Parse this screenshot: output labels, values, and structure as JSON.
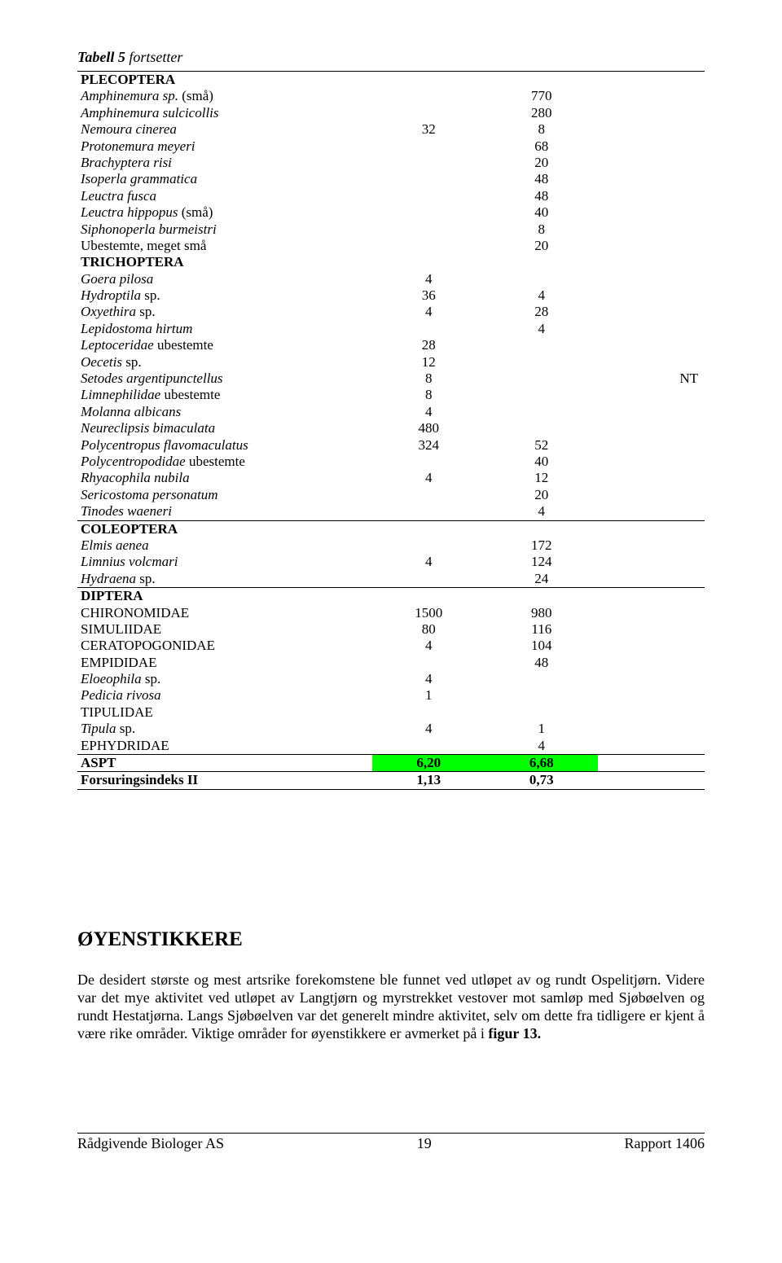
{
  "table_caption_bold": "Tabell 5",
  "table_caption_italic": " fortsetter",
  "section_title": "ØYENSTIKKERE",
  "body_paragraph": "De desidert største og mest artsrike forekomstene ble funnet ved utløpet av og rundt Ospelitjørn. Videre var det mye aktivitet ved utløpet av Langtjørn og myrstrekket vestover mot samløp med Sjøbøelven og rundt Hestatjørna. Langs Sjøbøelven var det generelt mindre aktivitet, selv om dette fra tidligere er kjent å være rike områder. Viktige områder for øyenstikkere er avmerket på i ",
  "body_paragraph_boldtail": "figur 13.",
  "footer_left": "Rådgivende Biologer AS",
  "footer_center": "19",
  "footer_right": "Rapport 1406",
  "highlight_color": "#00ff00",
  "rows": [
    {
      "c1": "PLECOPTERA",
      "bold": true,
      "ruleTop": true
    },
    {
      "c1": "Amphinemura sp. (små)",
      "c3": "770",
      "italic": true,
      "split_paren": true
    },
    {
      "c1": "Amphinemura sulcicollis",
      "c3": "280",
      "italic": true
    },
    {
      "c1": "Nemoura cinerea",
      "c2": "32",
      "c3": "8",
      "italic": true
    },
    {
      "c1": "Protonemura meyeri",
      "c3": "68",
      "italic": true
    },
    {
      "c1": "Brachyptera risi",
      "c3": "20",
      "italic": true
    },
    {
      "c1": "Isoperla grammatica",
      "c3": "48",
      "italic": true
    },
    {
      "c1": "Leuctra fusca",
      "c3": "48",
      "italic": true
    },
    {
      "c1": "Leuctra hippopus (små)",
      "c3": "40",
      "italic": true,
      "split_paren": true
    },
    {
      "c1": "Siphonoperla burmeistri",
      "c3": "8",
      "italic": true
    },
    {
      "c1": "Ubestemte, meget små",
      "c3": "20"
    },
    {
      "c1": "TRICHOPTERA",
      "bold": true
    },
    {
      "c1": "Goera pilosa",
      "c2": "4",
      "italic": true
    },
    {
      "c1": "Hydroptila sp.",
      "c2": "36",
      "c3": "4",
      "italic": true,
      "split_sp": true
    },
    {
      "c1": "Oxyethira sp.",
      "c2": "4",
      "c3": "28",
      "italic": true,
      "split_sp": true
    },
    {
      "c1": "Lepidostoma hirtum",
      "c3": "4",
      "italic": true
    },
    {
      "c1_italic": "Leptoceridae",
      "c1_plain": " ubestemte",
      "c2": "28",
      "mixed": true
    },
    {
      "c1": "Oecetis sp.",
      "c2": "12",
      "italic": true,
      "split_sp": true
    },
    {
      "c1": "Setodes argentipunctellus",
      "c2": "8",
      "c4": "NT",
      "italic": true
    },
    {
      "c1_italic": "Limnephilidae",
      "c1_plain": " ubestemte",
      "c2": "8",
      "mixed": true
    },
    {
      "c1": "Molanna albicans",
      "c2": "4",
      "italic": true
    },
    {
      "c1": "Neureclipsis bimaculata",
      "c2": "480",
      "italic": true
    },
    {
      "c1": "Polycentropus flavomaculatus",
      "c2": "324",
      "c3": "52",
      "italic": true
    },
    {
      "c1_italic": "Polycentropodidae",
      "c1_plain": "   ubestemte",
      "c3": "40",
      "mixed": true
    },
    {
      "c1": "Rhyacophila nubila",
      "c2": "4",
      "c3": "12",
      "italic": true
    },
    {
      "c1": "Sericostoma personatum",
      "c3": "20",
      "italic": true
    },
    {
      "c1": "Tinodes waeneri",
      "c3": "4",
      "italic": true,
      "ruleBot": true
    },
    {
      "c1": "COLEOPTERA",
      "bold": true
    },
    {
      "c1": "Elmis aenea",
      "c3": "172",
      "italic": true
    },
    {
      "c1": "Limnius volcmari",
      "c2": "4",
      "c3": "124",
      "italic": true
    },
    {
      "c1": "Hydraena sp.",
      "c3": "24",
      "italic": true,
      "split_sp": true,
      "ruleBot": true
    },
    {
      "c1": "DIPTERA",
      "bold": true
    },
    {
      "c1": "CHIRONOMIDAE",
      "c2": "1500",
      "c3": "980"
    },
    {
      "c1": "SIMULIIDAE",
      "c2": "80",
      "c3": "116"
    },
    {
      "c1": "CERATOPOGONIDAE",
      "c2": "4",
      "c3": "104"
    },
    {
      "c1": "EMPIDIDAE",
      "c3": "48"
    },
    {
      "c1": "Eloeophila sp.",
      "c2": "4",
      "italic": true,
      "split_sp": true
    },
    {
      "c1": "Pedicia rivosa",
      "c2": "1",
      "italic": true
    },
    {
      "c1": "TIPULIDAE"
    },
    {
      "c1": "Tipula sp.",
      "c2": "4",
      "c3": "1",
      "italic": true,
      "split_sp": true
    },
    {
      "c1": "EPHYDRIDAE",
      "c3": "4",
      "ruleBot": true
    },
    {
      "c1": "ASPT",
      "c2": "6,20",
      "c3": "6,68",
      "bold": true,
      "highlight": true,
      "ruleBot": true
    },
    {
      "c1": "Forsuringsindeks II",
      "c2": "1,13",
      "c3": "0,73",
      "bold": true,
      "ruleBot": true
    }
  ]
}
